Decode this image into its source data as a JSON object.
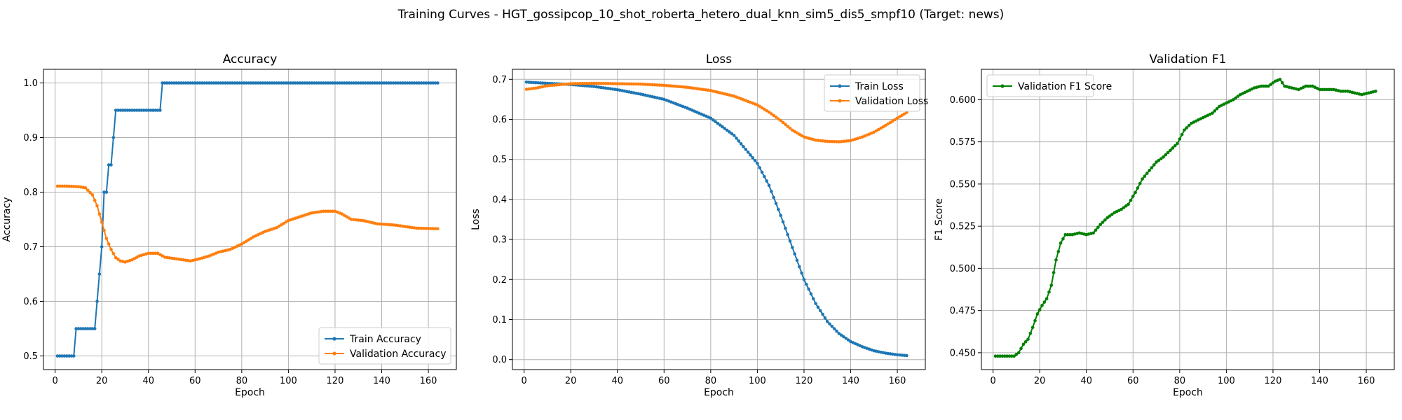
{
  "figure_title": "Training Curves - HGT_gossipcop_10_shot_roberta_hetero_dual_knn_sim5_dis5_smpf10 (Target: news)",
  "colors": {
    "blue": "#1f77b4",
    "orange": "#ff7f0e",
    "green": "#008000"
  },
  "chart_data": [
    {
      "type": "line",
      "title": "Accuracy",
      "xlabel": "Epoch",
      "ylabel": "Accuracy",
      "xlim": [
        -5,
        172
      ],
      "ylim": [
        0.475,
        1.025
      ],
      "xticks": [
        0,
        20,
        40,
        60,
        80,
        100,
        120,
        140,
        160
      ],
      "yticks": [
        0.5,
        0.6,
        0.7,
        0.8,
        0.9,
        1.0
      ],
      "ytick_labels": [
        "0.5",
        "0.6",
        "0.7",
        "0.8",
        "0.9",
        "1.0"
      ],
      "grid": true,
      "legend_position": "lower-right",
      "series": [
        {
          "name": "Train Accuracy",
          "color": "#1f77b4",
          "points": [
            [
              1,
              0.5
            ],
            [
              8,
              0.5
            ],
            [
              9,
              0.55
            ],
            [
              17,
              0.55
            ],
            [
              18,
              0.6
            ],
            [
              19,
              0.65
            ],
            [
              20,
              0.7
            ],
            [
              21,
              0.8
            ],
            [
              22,
              0.8
            ],
            [
              23,
              0.85
            ],
            [
              24,
              0.85
            ],
            [
              25,
              0.9
            ],
            [
              26,
              0.95
            ],
            [
              45,
              0.95
            ],
            [
              46,
              1.0
            ],
            [
              164,
              1.0
            ]
          ]
        },
        {
          "name": "Validation Accuracy",
          "color": "#ff7f0e",
          "points": [
            [
              1,
              0.811
            ],
            [
              5,
              0.811
            ],
            [
              10,
              0.81
            ],
            [
              13,
              0.808
            ],
            [
              16,
              0.795
            ],
            [
              18,
              0.775
            ],
            [
              20,
              0.745
            ],
            [
              22,
              0.715
            ],
            [
              24,
              0.695
            ],
            [
              26,
              0.68
            ],
            [
              28,
              0.674
            ],
            [
              30,
              0.672
            ],
            [
              33,
              0.676
            ],
            [
              36,
              0.683
            ],
            [
              40,
              0.688
            ],
            [
              44,
              0.688
            ],
            [
              47,
              0.681
            ],
            [
              50,
              0.679
            ],
            [
              55,
              0.676
            ],
            [
              58,
              0.674
            ],
            [
              62,
              0.678
            ],
            [
              66,
              0.683
            ],
            [
              70,
              0.69
            ],
            [
              75,
              0.695
            ],
            [
              80,
              0.705
            ],
            [
              85,
              0.718
            ],
            [
              90,
              0.728
            ],
            [
              95,
              0.735
            ],
            [
              100,
              0.748
            ],
            [
              105,
              0.755
            ],
            [
              110,
              0.762
            ],
            [
              115,
              0.765
            ],
            [
              120,
              0.765
            ],
            [
              123,
              0.76
            ],
            [
              127,
              0.75
            ],
            [
              132,
              0.748
            ],
            [
              138,
              0.742
            ],
            [
              145,
              0.74
            ],
            [
              150,
              0.737
            ],
            [
              155,
              0.734
            ],
            [
              164,
              0.733
            ]
          ]
        }
      ]
    },
    {
      "type": "line",
      "title": "Loss",
      "xlabel": "Epoch",
      "ylabel": "Loss",
      "xlim": [
        -5,
        172
      ],
      "ylim": [
        -0.025,
        0.725
      ],
      "xticks": [
        0,
        20,
        40,
        60,
        80,
        100,
        120,
        140,
        160
      ],
      "yticks": [
        0.0,
        0.1,
        0.2,
        0.3,
        0.4,
        0.5,
        0.6,
        0.7
      ],
      "ytick_labels": [
        "0.0",
        "0.1",
        "0.2",
        "0.3",
        "0.4",
        "0.5",
        "0.6",
        "0.7"
      ],
      "grid": true,
      "legend_position": "upper-right",
      "series": [
        {
          "name": "Train Loss",
          "color": "#1f77b4",
          "points": [
            [
              1,
              0.693
            ],
            [
              10,
              0.69
            ],
            [
              20,
              0.687
            ],
            [
              30,
              0.682
            ],
            [
              40,
              0.674
            ],
            [
              50,
              0.663
            ],
            [
              60,
              0.65
            ],
            [
              70,
              0.628
            ],
            [
              80,
              0.603
            ],
            [
              90,
              0.56
            ],
            [
              100,
              0.49
            ],
            [
              105,
              0.435
            ],
            [
              110,
              0.36
            ],
            [
              115,
              0.28
            ],
            [
              120,
              0.2
            ],
            [
              125,
              0.14
            ],
            [
              130,
              0.095
            ],
            [
              135,
              0.065
            ],
            [
              140,
              0.045
            ],
            [
              145,
              0.032
            ],
            [
              150,
              0.022
            ],
            [
              155,
              0.016
            ],
            [
              160,
              0.012
            ],
            [
              164,
              0.01
            ]
          ]
        },
        {
          "name": "Validation Loss",
          "color": "#ff7f0e",
          "points": [
            [
              1,
              0.675
            ],
            [
              5,
              0.678
            ],
            [
              10,
              0.684
            ],
            [
              20,
              0.689
            ],
            [
              30,
              0.69
            ],
            [
              40,
              0.689
            ],
            [
              50,
              0.688
            ],
            [
              60,
              0.685
            ],
            [
              70,
              0.68
            ],
            [
              80,
              0.672
            ],
            [
              90,
              0.658
            ],
            [
              100,
              0.636
            ],
            [
              105,
              0.618
            ],
            [
              110,
              0.597
            ],
            [
              115,
              0.573
            ],
            [
              120,
              0.556
            ],
            [
              125,
              0.548
            ],
            [
              130,
              0.545
            ],
            [
              135,
              0.544
            ],
            [
              140,
              0.547
            ],
            [
              145,
              0.556
            ],
            [
              150,
              0.568
            ],
            [
              155,
              0.585
            ],
            [
              160,
              0.603
            ],
            [
              164,
              0.617
            ]
          ]
        }
      ]
    },
    {
      "type": "line",
      "title": "Validation F1",
      "xlabel": "Epoch",
      "ylabel": "F1 Score",
      "xlim": [
        -5,
        172
      ],
      "ylim": [
        0.44,
        0.618
      ],
      "xticks": [
        0,
        20,
        40,
        60,
        80,
        100,
        120,
        140,
        160
      ],
      "yticks": [
        0.45,
        0.475,
        0.5,
        0.525,
        0.55,
        0.575,
        0.6
      ],
      "ytick_labels": [
        "0.450",
        "0.475",
        "0.500",
        "0.525",
        "0.550",
        "0.575",
        "0.600"
      ],
      "grid": true,
      "legend_position": "upper-left",
      "series": [
        {
          "name": "Validation F1 Score",
          "color": "#008000",
          "points": [
            [
              1,
              0.448
            ],
            [
              5,
              0.448
            ],
            [
              9,
              0.448
            ],
            [
              11,
              0.45
            ],
            [
              13,
              0.455
            ],
            [
              15,
              0.458
            ],
            [
              17,
              0.465
            ],
            [
              19,
              0.473
            ],
            [
              21,
              0.478
            ],
            [
              23,
              0.482
            ],
            [
              25,
              0.49
            ],
            [
              27,
              0.505
            ],
            [
              29,
              0.515
            ],
            [
              31,
              0.52
            ],
            [
              34,
              0.52
            ],
            [
              37,
              0.521
            ],
            [
              40,
              0.52
            ],
            [
              43,
              0.521
            ],
            [
              46,
              0.526
            ],
            [
              49,
              0.53
            ],
            [
              52,
              0.533
            ],
            [
              55,
              0.535
            ],
            [
              58,
              0.538
            ],
            [
              61,
              0.545
            ],
            [
              64,
              0.553
            ],
            [
              67,
              0.558
            ],
            [
              70,
              0.563
            ],
            [
              73,
              0.566
            ],
            [
              76,
              0.57
            ],
            [
              79,
              0.574
            ],
            [
              82,
              0.582
            ],
            [
              85,
              0.586
            ],
            [
              88,
              0.588
            ],
            [
              91,
              0.59
            ],
            [
              94,
              0.592
            ],
            [
              97,
              0.596
            ],
            [
              100,
              0.598
            ],
            [
              103,
              0.6
            ],
            [
              106,
              0.603
            ],
            [
              109,
              0.605
            ],
            [
              112,
              0.607
            ],
            [
              115,
              0.608
            ],
            [
              118,
              0.608
            ],
            [
              121,
              0.611
            ],
            [
              123,
              0.612
            ],
            [
              125,
              0.608
            ],
            [
              128,
              0.607
            ],
            [
              131,
              0.606
            ],
            [
              134,
              0.608
            ],
            [
              137,
              0.608
            ],
            [
              140,
              0.606
            ],
            [
              143,
              0.606
            ],
            [
              146,
              0.606
            ],
            [
              149,
              0.605
            ],
            [
              152,
              0.605
            ],
            [
              155,
              0.604
            ],
            [
              158,
              0.603
            ],
            [
              161,
              0.604
            ],
            [
              164,
              0.605
            ]
          ]
        }
      ]
    }
  ]
}
